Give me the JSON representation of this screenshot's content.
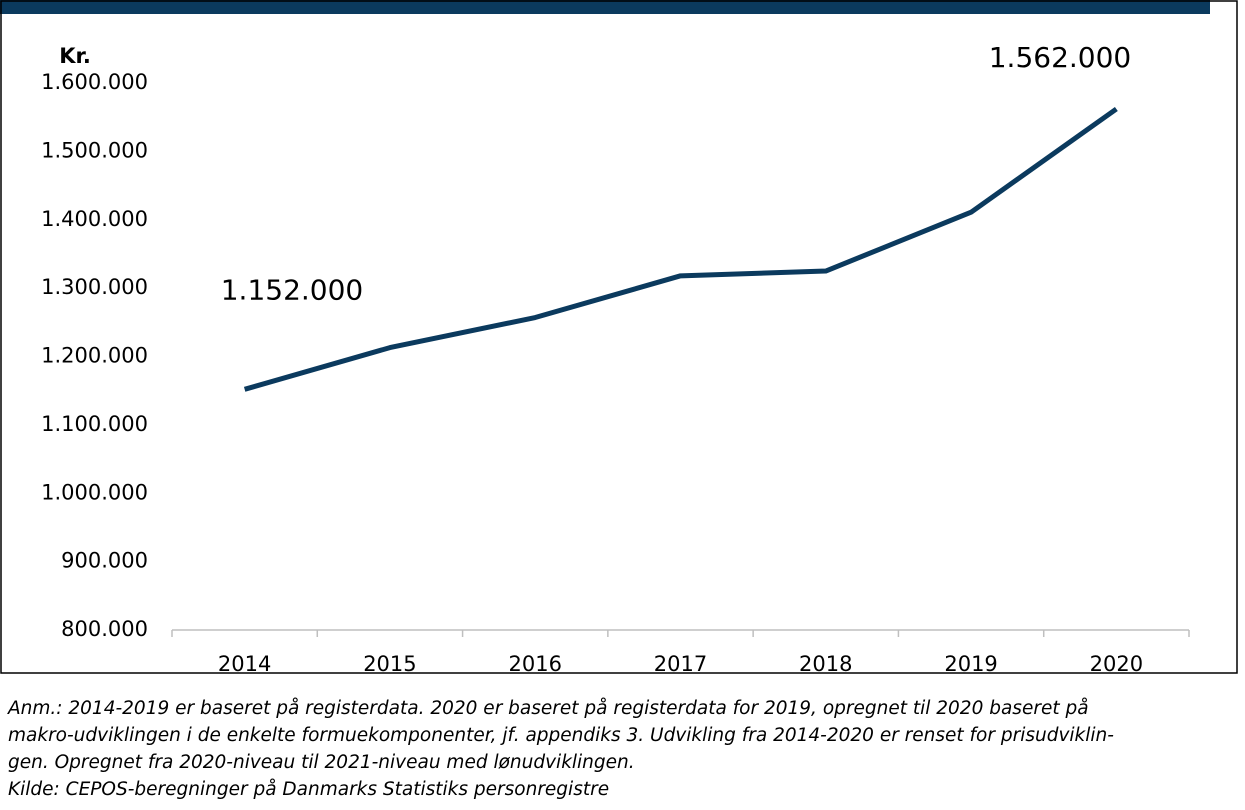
{
  "chart_data": {
    "type": "line",
    "y_label": "Kr.",
    "categories": [
      "2014",
      "2015",
      "2016",
      "2017",
      "2018",
      "2019",
      "2020"
    ],
    "series": [
      {
        "color": "#0b3a5e",
        "values": [
          1152000,
          1213000,
          1257000,
          1318000,
          1325000,
          1411000,
          1562000
        ],
        "value_labels": [
          "1.152.000",
          null,
          null,
          null,
          null,
          null,
          "1.562.000"
        ]
      }
    ],
    "ylim": [
      800000,
      1600000
    ],
    "yticks": [
      {
        "value": 800000,
        "label": "800.000"
      },
      {
        "value": 900000,
        "label": "900.000"
      },
      {
        "value": 1000000,
        "label": "1.000.000"
      },
      {
        "value": 1100000,
        "label": "1.100.000"
      },
      {
        "value": 1200000,
        "label": "1.200.000"
      },
      {
        "value": 1300000,
        "label": "1.300.000"
      },
      {
        "value": 1400000,
        "label": "1.400.000"
      },
      {
        "value": 1500000,
        "label": "1.500.000"
      },
      {
        "value": 1600000,
        "label": "1.600.000"
      }
    ],
    "grid": false,
    "notes": [
      "Anm.: 2014-2019 er baseret på registerdata. 2020 er baseret på registerdata for 2019, opregnet til 2020 baseret på",
      "makro-udviklingen i de enkelte formuekomponenter, jf. appendiks 3. Udvikling fra 2014-2020 er renset for prisudviklin-",
      "gen. Opregnet fra 2020-niveau til 2021-niveau med lønudviklingen.",
      "Kilde: CEPOS-beregninger på Danmarks Statistiks personregistre"
    ]
  }
}
